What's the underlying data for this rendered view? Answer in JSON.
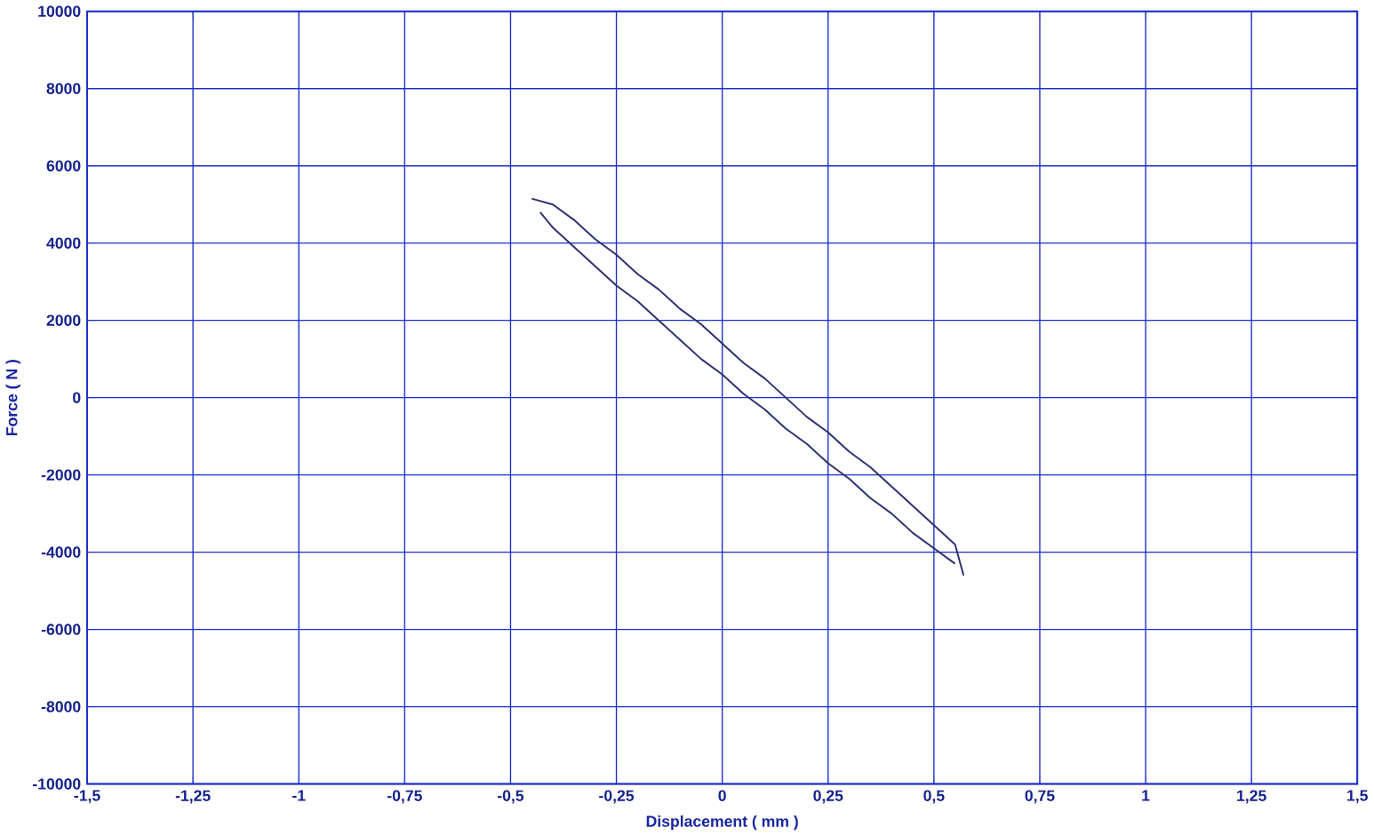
{
  "chart_data": {
    "type": "line",
    "xlabel": "Displacement ( mm )",
    "ylabel": "Force ( N )",
    "xlim": [
      -1.5,
      1.5
    ],
    "ylim": [
      -10000,
      10000
    ],
    "xticks": [
      {
        "value": -1.5,
        "label": "-1,5"
      },
      {
        "value": -1.25,
        "label": "-1,25"
      },
      {
        "value": -1,
        "label": "-1"
      },
      {
        "value": -0.75,
        "label": "-0,75"
      },
      {
        "value": -0.5,
        "label": "-0,5"
      },
      {
        "value": -0.25,
        "label": "-0,25"
      },
      {
        "value": 0,
        "label": "0"
      },
      {
        "value": 0.25,
        "label": "0,25"
      },
      {
        "value": 0.5,
        "label": "0,5"
      },
      {
        "value": 0.75,
        "label": "0,75"
      },
      {
        "value": 1,
        "label": "1"
      },
      {
        "value": 1.25,
        "label": "1,25"
      },
      {
        "value": 1.5,
        "label": "1,5"
      }
    ],
    "yticks": [
      -10000,
      -8000,
      -6000,
      -4000,
      -2000,
      0,
      2000,
      4000,
      6000,
      8000,
      10000
    ],
    "grid": true,
    "marker": "none",
    "line_style": "solid",
    "series": [
      {
        "color": "#2b3170",
        "x": [
          -0.45,
          -0.4,
          -0.35,
          -0.3,
          -0.25,
          -0.2,
          -0.15,
          -0.1,
          -0.05,
          0,
          0.05,
          0.1,
          0.15,
          0.2,
          0.25,
          0.3,
          0.35,
          0.4,
          0.45,
          0.5,
          0.55,
          0.57
        ],
        "values": [
          5150,
          5000,
          4600,
          4100,
          3700,
          3200,
          2800,
          2300,
          1900,
          1400,
          900,
          500,
          0,
          -500,
          -900,
          -1400,
          -1800,
          -2300,
          -2800,
          -3300,
          -3800,
          -4600
        ]
      },
      {
        "color": "#2b3170",
        "x": [
          -0.43,
          -0.4,
          -0.35,
          -0.3,
          -0.25,
          -0.2,
          -0.15,
          -0.1,
          -0.05,
          0,
          0.05,
          0.1,
          0.15,
          0.2,
          0.25,
          0.3,
          0.35,
          0.4,
          0.45,
          0.5,
          0.55
        ],
        "values": [
          4800,
          4400,
          3900,
          3400,
          2900,
          2500,
          2000,
          1500,
          1000,
          600,
          100,
          -300,
          -800,
          -1200,
          -1700,
          -2100,
          -2600,
          -3000,
          -3500,
          -3900,
          -4300
        ]
      }
    ]
  }
}
